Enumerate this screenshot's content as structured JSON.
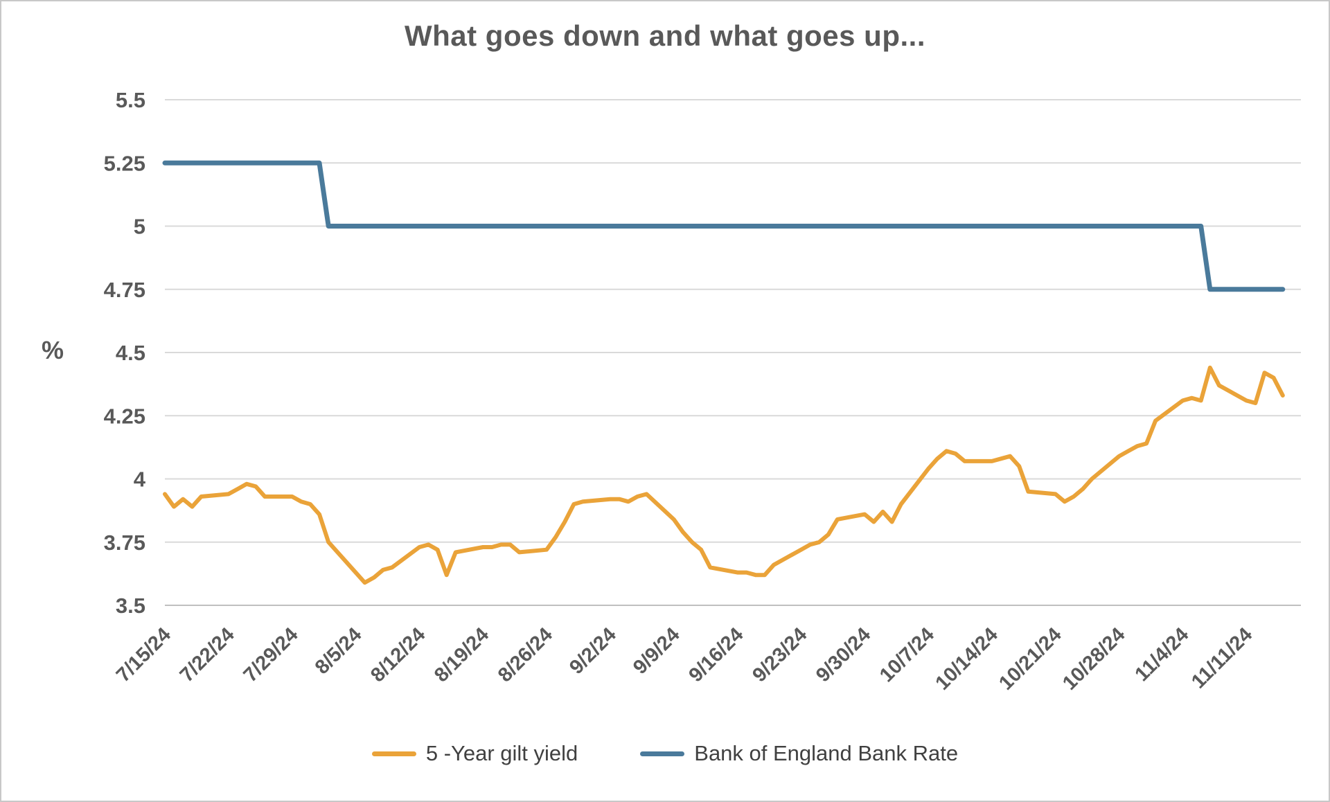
{
  "window": {
    "background": "#ffffff",
    "border_color": "#c8c8c8"
  },
  "chart_data": {
    "type": "line",
    "title": "What goes down and what goes up...",
    "ylabel": "%",
    "ylim": [
      3.5,
      5.5
    ],
    "y_ticks": [
      {
        "v": 3.5,
        "label": "3.5"
      },
      {
        "v": 3.75,
        "label": "3.75"
      },
      {
        "v": 4.0,
        "label": "4"
      },
      {
        "v": 4.25,
        "label": "4.25"
      },
      {
        "v": 4.5,
        "label": "4.5"
      },
      {
        "v": 4.75,
        "label": "4.75"
      },
      {
        "v": 5.0,
        "label": "5"
      },
      {
        "v": 5.25,
        "label": "5.25"
      },
      {
        "v": 5.5,
        "label": "5.5"
      }
    ],
    "x_domain": [
      0,
      125
    ],
    "x_ticks": [
      {
        "d": 0,
        "label": "7/15/24"
      },
      {
        "d": 7,
        "label": "7/22/24"
      },
      {
        "d": 14,
        "label": "7/29/24"
      },
      {
        "d": 21,
        "label": "8/5/24"
      },
      {
        "d": 28,
        "label": "8/12/24"
      },
      {
        "d": 35,
        "label": "8/19/24"
      },
      {
        "d": 42,
        "label": "8/26/24"
      },
      {
        "d": 49,
        "label": "9/2/24"
      },
      {
        "d": 56,
        "label": "9/9/24"
      },
      {
        "d": 63,
        "label": "9/16/24"
      },
      {
        "d": 70,
        "label": "9/23/24"
      },
      {
        "d": 77,
        "label": "9/30/24"
      },
      {
        "d": 84,
        "label": "10/7/24"
      },
      {
        "d": 91,
        "label": "10/14/24"
      },
      {
        "d": 98,
        "label": "10/21/24"
      },
      {
        "d": 105,
        "label": "10/28/24"
      },
      {
        "d": 112,
        "label": "11/4/24"
      },
      {
        "d": 119,
        "label": "11/11/24"
      }
    ],
    "grid": "horizontal",
    "legend_position": "bottom-center",
    "styles": {
      "grid_color": "#D9D9D9",
      "axis_line_color": "#BFBFBF",
      "tick_text_color": "#595959",
      "title_color": "#595959",
      "legend_text_color": "#404040"
    },
    "series": [
      {
        "id": "gilt-yield",
        "name": "5 -Year gilt yield",
        "color": "#EAA339",
        "width": 6,
        "points": [
          [
            0,
            3.94
          ],
          [
            1,
            3.89
          ],
          [
            2,
            3.92
          ],
          [
            3,
            3.89
          ],
          [
            4,
            3.93
          ],
          [
            7,
            3.94
          ],
          [
            8,
            3.96
          ],
          [
            9,
            3.98
          ],
          [
            10,
            3.97
          ],
          [
            11,
            3.93
          ],
          [
            14,
            3.93
          ],
          [
            15,
            3.91
          ],
          [
            16,
            3.9
          ],
          [
            17,
            3.86
          ],
          [
            18,
            3.75
          ],
          [
            21,
            3.63
          ],
          [
            22,
            3.59
          ],
          [
            23,
            3.61
          ],
          [
            24,
            3.64
          ],
          [
            25,
            3.65
          ],
          [
            28,
            3.73
          ],
          [
            29,
            3.74
          ],
          [
            30,
            3.72
          ],
          [
            31,
            3.62
          ],
          [
            32,
            3.71
          ],
          [
            35,
            3.73
          ],
          [
            36,
            3.73
          ],
          [
            37,
            3.74
          ],
          [
            38,
            3.74
          ],
          [
            39,
            3.71
          ],
          [
            42,
            3.72
          ],
          [
            43,
            3.77
          ],
          [
            44,
            3.83
          ],
          [
            45,
            3.9
          ],
          [
            46,
            3.91
          ],
          [
            49,
            3.92
          ],
          [
            50,
            3.92
          ],
          [
            51,
            3.91
          ],
          [
            52,
            3.93
          ],
          [
            53,
            3.94
          ],
          [
            56,
            3.84
          ],
          [
            57,
            3.79
          ],
          [
            58,
            3.75
          ],
          [
            59,
            3.72
          ],
          [
            60,
            3.65
          ],
          [
            63,
            3.63
          ],
          [
            64,
            3.63
          ],
          [
            65,
            3.62
          ],
          [
            66,
            3.62
          ],
          [
            67,
            3.66
          ],
          [
            70,
            3.72
          ],
          [
            71,
            3.74
          ],
          [
            72,
            3.75
          ],
          [
            73,
            3.78
          ],
          [
            74,
            3.84
          ],
          [
            77,
            3.86
          ],
          [
            78,
            3.83
          ],
          [
            79,
            3.87
          ],
          [
            80,
            3.83
          ],
          [
            81,
            3.9
          ],
          [
            84,
            4.04
          ],
          [
            85,
            4.08
          ],
          [
            86,
            4.11
          ],
          [
            87,
            4.1
          ],
          [
            88,
            4.07
          ],
          [
            91,
            4.07
          ],
          [
            92,
            4.08
          ],
          [
            93,
            4.09
          ],
          [
            94,
            4.05
          ],
          [
            95,
            3.95
          ],
          [
            98,
            3.94
          ],
          [
            99,
            3.91
          ],
          [
            100,
            3.93
          ],
          [
            101,
            3.96
          ],
          [
            102,
            4.0
          ],
          [
            105,
            4.09
          ],
          [
            106,
            4.11
          ],
          [
            107,
            4.13
          ],
          [
            108,
            4.14
          ],
          [
            109,
            4.23
          ],
          [
            112,
            4.31
          ],
          [
            113,
            4.32
          ],
          [
            114,
            4.31
          ],
          [
            115,
            4.44
          ],
          [
            116,
            4.37
          ],
          [
            119,
            4.31
          ],
          [
            120,
            4.3
          ],
          [
            121,
            4.42
          ],
          [
            122,
            4.4
          ],
          [
            123,
            4.33
          ]
        ]
      },
      {
        "id": "bank-rate",
        "name": "Bank of England Bank Rate",
        "color": "#4A7A9B",
        "width": 7,
        "points": [
          [
            0,
            5.25
          ],
          [
            17,
            5.25
          ],
          [
            18,
            5.0
          ],
          [
            114,
            5.0
          ],
          [
            115,
            4.75
          ],
          [
            123,
            4.75
          ]
        ]
      }
    ]
  }
}
